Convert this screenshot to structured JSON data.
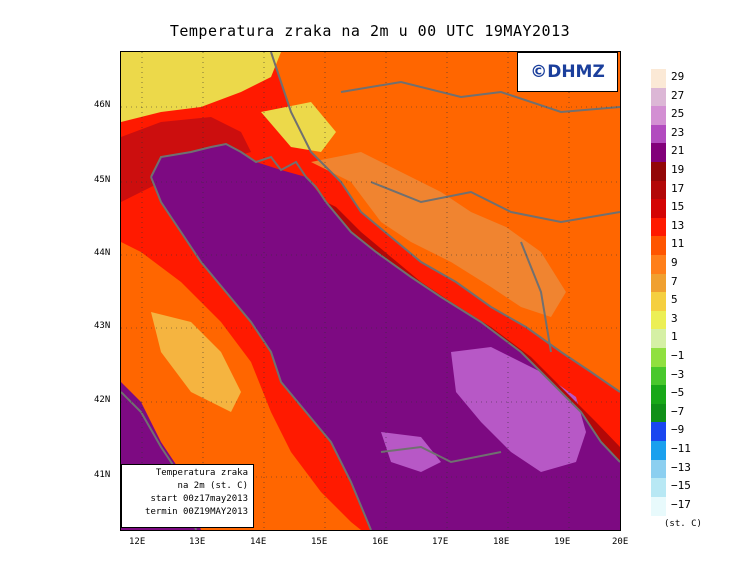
{
  "title": "Temperatura zraka na 2m u 00 UTC 19MAY2013",
  "logo_text": "©DHMZ",
  "info_box": {
    "line1": "Temperatura zraka",
    "line2": "na 2m (st. C)",
    "line3": "start 00z17may2013",
    "line4": "termin 00Z19MAY2013"
  },
  "x_ticks": [
    "12E",
    "13E",
    "14E",
    "15E",
    "16E",
    "17E",
    "18E",
    "19E",
    "20E"
  ],
  "y_ticks": [
    "46N",
    "45N",
    "44N",
    "43N",
    "42N",
    "41N"
  ],
  "legend": {
    "unit": "(st. C)",
    "labels": [
      "29",
      "27",
      "25",
      "23",
      "21",
      "19",
      "17",
      "15",
      "13",
      "11",
      "9",
      "7",
      "5",
      "3",
      "1",
      "−1",
      "−3",
      "−5",
      "−7",
      "−9",
      "−11",
      "−13",
      "−15",
      "−17"
    ],
    "colors": [
      "#fbe9d6",
      "#dcb7d6",
      "#d38fd3",
      "#b24bbf",
      "#82007a",
      "#930707",
      "#b30808",
      "#d40404",
      "#ff1a00",
      "#ff5500",
      "#ff7f1a",
      "#f0a030",
      "#f5cf40",
      "#ecef55",
      "#d5f0a5",
      "#90e040",
      "#48c82c",
      "#18a818",
      "#109018",
      "#1a46f0",
      "#1aa0ee",
      "#8ccff0",
      "#b8e8f4",
      "#e8fafc"
    ]
  },
  "map_colors": {
    "sea_warm": "#7d0a82",
    "sea_light": "#b758c6",
    "land_hot": "#cc0e0e",
    "land_red": "#ff1a00",
    "land_orange": "#ff6600",
    "land_lorange": "#f08430",
    "land_yellow": "#ecd94a",
    "coast": "#707070"
  }
}
